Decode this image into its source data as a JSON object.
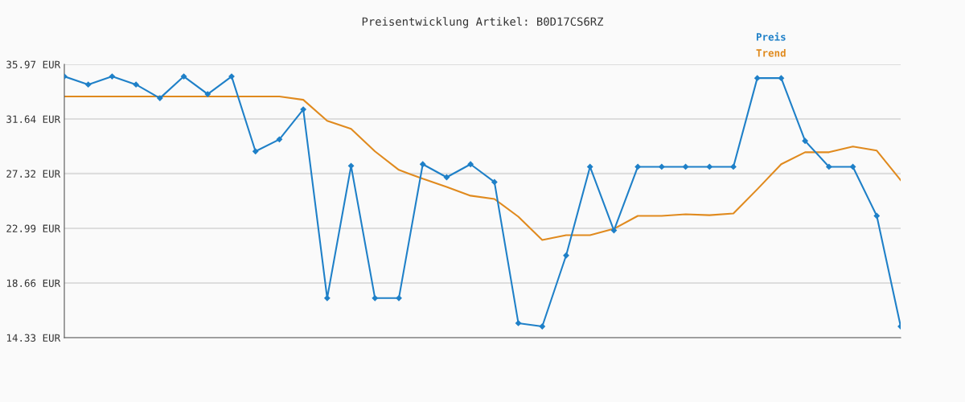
{
  "chart_data": {
    "type": "line",
    "title": "Preisentwicklung Artikel: B0D17CS6RZ",
    "categories": [
      null,
      null,
      null,
      null,
      null,
      null,
      null,
      null,
      null,
      null,
      null,
      null,
      null,
      null,
      null,
      null,
      null,
      null,
      null,
      null,
      null,
      null,
      null,
      null,
      null,
      null,
      null,
      null,
      null,
      null,
      null,
      null,
      null,
      null,
      null,
      null
    ],
    "series": [
      {
        "name": "Preis",
        "color": "#1f80c8",
        "marker": "diamond",
        "values": [
          35.01,
          34.37,
          35.01,
          34.37,
          33.29,
          35.01,
          33.61,
          35.01,
          29.08,
          30.03,
          32.4,
          17.46,
          27.93,
          17.46,
          17.46,
          28.06,
          27.03,
          28.06,
          26.65,
          15.48,
          15.22,
          20.84,
          27.86,
          22.82,
          27.86,
          27.86,
          27.86,
          27.86,
          27.86,
          34.88,
          34.88,
          29.91,
          27.86,
          27.86,
          23.97,
          15.22
        ]
      },
      {
        "name": "Trend",
        "color": "#e08a1e",
        "marker": "none",
        "values": [
          33.42,
          33.42,
          33.42,
          33.42,
          33.42,
          33.42,
          33.42,
          33.42,
          33.42,
          33.42,
          33.16,
          31.5,
          30.86,
          29.08,
          27.61,
          26.91,
          26.27,
          25.57,
          25.31,
          23.91,
          22.06,
          22.44,
          22.44,
          22.95,
          23.97,
          23.97,
          24.1,
          24.03,
          24.16,
          26.08,
          28.06,
          29.01,
          29.01,
          29.46,
          29.14,
          26.8
        ]
      }
    ],
    "ylim": [
      14.33,
      35.97
    ],
    "yticks": [
      {
        "value": 14.33,
        "label": "14.33 EUR"
      },
      {
        "value": 18.66,
        "label": "18.66 EUR"
      },
      {
        "value": 22.99,
        "label": "22.99 EUR"
      },
      {
        "value": 27.32,
        "label": "27.32 EUR"
      },
      {
        "value": 31.64,
        "label": "31.64 EUR"
      },
      {
        "value": 35.97,
        "label": "35.97 EUR"
      }
    ],
    "grid": "y",
    "legend": "top right",
    "tick_labels": "y",
    "line_style": "solid"
  }
}
